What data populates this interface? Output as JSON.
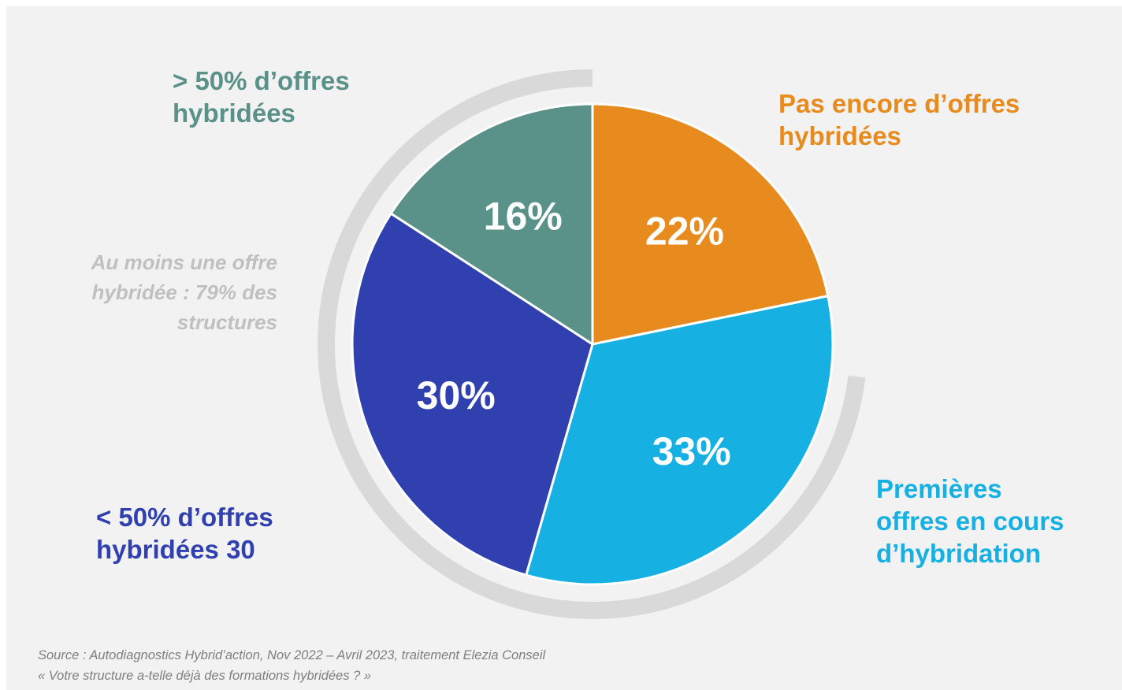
{
  "chart_data": {
    "type": "pie",
    "slices": [
      {
        "label": "Pas encore d’offres hybridées",
        "value": 22,
        "value_label": "22%",
        "color": "#e88b1e"
      },
      {
        "label": "Premières offres en cours d’hybridation",
        "value": 33,
        "value_label": "33%",
        "color": "#16b0e3"
      },
      {
        "label": "< 50% d’offres hybridées 30",
        "value": 30,
        "value_label": "30%",
        "color": "#3040ae"
      },
      {
        "label": "> 50% d’offres hybridées",
        "value": 16,
        "value_label": "16%",
        "color": "#5a9189"
      }
    ],
    "start_angle_deg": 0,
    "direction": "clockwise",
    "annotation": "Au moins une offre hybridée : 79% des structures",
    "annotation_color": "#c0c0c0",
    "arc_color": "#d9d9d9"
  },
  "labels": {
    "top_right_line1": "Pas encore d’offres",
    "top_right_line2": "hybridées",
    "bottom_right_line1": "Premières",
    "bottom_right_line2": "offres en cours",
    "bottom_right_line3": "d’hybridation",
    "bottom_left_line1": "< 50% d’offres",
    "bottom_left_line2": "hybridées 30",
    "top_left_line1": "> 50% d’offres",
    "top_left_line2": "hybridées"
  },
  "note": "Au moins une offre\nhybridée : 79% des\nstructures",
  "source": {
    "line1": "Source : Autodiagnostics Hybrid’action, Nov 2022 – Avril 2023, traitement Elezia Conseil",
    "line2": "« Votre structure a-telle déjà des formations hybridées ? »"
  }
}
